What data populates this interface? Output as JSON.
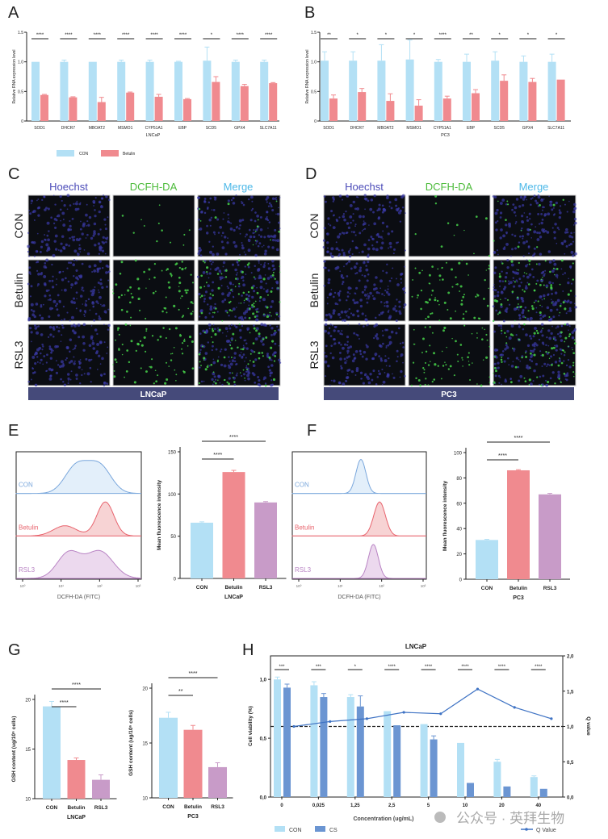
{
  "colors": {
    "con": "#b3e0f5",
    "betulin": "#f08a8f",
    "rsl3": "#c89bc8",
    "cs": "#6b95d2",
    "q": "#3f73c4",
    "band": "#454a7a",
    "hoechst": "#4b4bb8",
    "dcfh": "#4cbb3a",
    "merge": "#4cb8e8"
  },
  "panel_letters": [
    "A",
    "B",
    "C",
    "D",
    "E",
    "F",
    "G",
    "H"
  ],
  "legend_ab": [
    "CON",
    "Betulin"
  ],
  "microscopy": {
    "columns": [
      "Hoechst",
      "DCFH-DA",
      "Merge"
    ],
    "rows": [
      "CON",
      "Betulin",
      "RSL3"
    ],
    "C_cell_line": "LNCaP",
    "D_cell_line": "PC3"
  },
  "chart_data": [
    {
      "id": "A",
      "type": "bar",
      "title": "",
      "xlabel": "LNCaP",
      "ylabel": "Relative RNA expression level",
      "ylim": [
        0,
        1.5
      ],
      "yticks": [
        "0",
        "0.5",
        "1.0",
        "1.5"
      ],
      "categories": [
        "SOD1",
        "DHCR7",
        "MBOAT2",
        "MSMO1",
        "CYP51A1",
        "EBP",
        "SCD5",
        "GPX4",
        "SLC7A11"
      ],
      "series": [
        {
          "name": "CON",
          "values": [
            1,
            1,
            1,
            1,
            1,
            1,
            1.02,
            1,
            1
          ],
          "errors": [
            0,
            0.03,
            0,
            0.03,
            0.03,
            0.01,
            0.23,
            0.03,
            0.03
          ]
        },
        {
          "name": "Betulin",
          "values": [
            0.44,
            0.4,
            0.32,
            0.48,
            0.41,
            0.37,
            0.66,
            0.59,
            0.64
          ],
          "errors": [
            0.01,
            0.01,
            0.08,
            0.01,
            0.04,
            0.01,
            0.09,
            0.03,
            0.01
          ]
        }
      ],
      "significance": [
        "****",
        "****",
        "****",
        "****",
        "****",
        "****",
        "*",
        "****",
        "****"
      ]
    },
    {
      "id": "B",
      "type": "bar",
      "title": "",
      "xlabel": "PC3",
      "ylabel": "Relative RNA expression level",
      "ylim": [
        0,
        1.5
      ],
      "yticks": [
        "0",
        "0.5",
        "1.0",
        "1.5"
      ],
      "categories": [
        "SOD1",
        "DHCR7",
        "MBOAT2",
        "MSMO1",
        "CYP51A1",
        "EBP",
        "SCD5",
        "GPX4",
        "SLC7A11"
      ],
      "series": [
        {
          "name": "CON",
          "values": [
            1.02,
            1.02,
            1.02,
            1.04,
            1,
            1,
            1.02,
            1,
            1
          ],
          "errors": [
            0.15,
            0.15,
            0.27,
            0.33,
            0.04,
            0.13,
            0.15,
            0.1,
            0.13
          ]
        },
        {
          "name": "Betulin",
          "values": [
            0.38,
            0.49,
            0.34,
            0.26,
            0.38,
            0.47,
            0.68,
            0.66,
            0.7
          ],
          "errors": [
            0.06,
            0.06,
            0.12,
            0.1,
            0.04,
            0.06,
            0.1,
            0.06,
            0
          ]
        }
      ],
      "significance": [
        "**",
        "*",
        "*",
        "*",
        "****",
        "**",
        "*",
        "*",
        "*"
      ]
    },
    {
      "id": "E_hist",
      "type": "area",
      "xlabel": "DCFH-DA (FITC)",
      "xticks": [
        "10⁰",
        "10¹",
        "10²",
        "10³"
      ],
      "xlim_log10": [
        0,
        3
      ],
      "series": [
        {
          "name": "CON",
          "components": [
            [
              1.4,
              0.3,
              0.8
            ],
            [
              2.0,
              0.3,
              0.8
            ]
          ]
        },
        {
          "name": "Betulin",
          "components": [
            [
              1.1,
              0.3,
              0.3
            ],
            [
              2.15,
              0.22,
              1.0
            ]
          ]
        },
        {
          "name": "RSL3",
          "components": [
            [
              1.2,
              0.3,
              0.75
            ],
            [
              2.0,
              0.35,
              0.8
            ]
          ]
        }
      ]
    },
    {
      "id": "E_bar",
      "type": "bar",
      "xlabel": "LNCaP",
      "ylabel": "Mean fluorescence intensity",
      "ylim": [
        0,
        150
      ],
      "yticks": [
        "0",
        "50",
        "100",
        "150"
      ],
      "categories": [
        "CON",
        "Betulin",
        "RSL3"
      ],
      "values": [
        66,
        126,
        90
      ],
      "errors": [
        1,
        2,
        1
      ],
      "comparisons": [
        {
          "pair": [
            "CON",
            "Betulin"
          ],
          "label": "****"
        },
        {
          "pair": [
            "CON",
            "RSL3"
          ],
          "label": "****"
        }
      ]
    },
    {
      "id": "F_hist",
      "type": "area",
      "xlabel": "DCFH-DA (FITC)",
      "xticks": [
        "10⁰",
        "10¹",
        "10²",
        "10³"
      ],
      "xlim_log10": [
        0,
        3
      ],
      "series": [
        {
          "name": "CON",
          "components": [
            [
              1.5,
              0.12,
              1
            ]
          ]
        },
        {
          "name": "Betulin",
          "components": [
            [
              1.95,
              0.14,
              1
            ]
          ]
        },
        {
          "name": "RSL3",
          "components": [
            [
              1.8,
              0.12,
              1
            ]
          ]
        }
      ]
    },
    {
      "id": "F_bar",
      "type": "bar",
      "xlabel": "PC3",
      "ylabel": "Mean fluorescence intensity",
      "ylim": [
        0,
        100
      ],
      "yticks": [
        "0",
        "20",
        "40",
        "60",
        "80",
        "100"
      ],
      "categories": [
        "CON",
        "Betulin",
        "RSL3"
      ],
      "values": [
        31,
        86,
        67
      ],
      "errors": [
        0.5,
        0.5,
        0.8
      ],
      "comparisons": [
        {
          "pair": [
            "CON",
            "Betulin"
          ],
          "label": "****"
        },
        {
          "pair": [
            "CON",
            "RSL3"
          ],
          "label": "****"
        }
      ]
    },
    {
      "id": "G_lncap",
      "type": "bar",
      "xlabel": "LNCaP",
      "ylabel": "GSH content (ug/10⁶ cells)",
      "ylim": [
        10,
        20
      ],
      "yticks": [
        "10",
        "15",
        "20"
      ],
      "categories": [
        "CON",
        "Betulin",
        "RSL3"
      ],
      "values": [
        19.3,
        13.9,
        11.9
      ],
      "errors": [
        0.5,
        0.2,
        0.5
      ],
      "comparisons": [
        {
          "pair": [
            "CON",
            "Betulin"
          ],
          "label": "****"
        },
        {
          "pair": [
            "CON",
            "RSL3"
          ],
          "label": "****"
        }
      ]
    },
    {
      "id": "G_pc3",
      "type": "bar",
      "xlabel": "PC3",
      "ylabel": "GSH content (ug/10⁶ cells)",
      "ylim": [
        10,
        20
      ],
      "yticks": [
        "10",
        "15",
        "20"
      ],
      "categories": [
        "CON",
        "Betulin",
        "RSL3"
      ],
      "values": [
        17.3,
        16.2,
        12.8
      ],
      "errors": [
        0.5,
        0.4,
        0.4
      ],
      "comparisons": [
        {
          "pair": [
            "CON",
            "Betulin"
          ],
          "label": "**"
        },
        {
          "pair": [
            "CON",
            "RSL3"
          ],
          "label": "****"
        }
      ]
    },
    {
      "id": "H",
      "type": "bar",
      "title": "LNCaP",
      "xlabel": "Concentration (ug/mL)",
      "ylabel": "Cell viability (%)",
      "y2label": "Q value",
      "ylim": [
        0,
        1.2
      ],
      "yticks": [
        "0,0",
        "0,5",
        "1,0"
      ],
      "y2lim": [
        0,
        2
      ],
      "y2ticks": [
        "0,0",
        "0,5",
        "1,0",
        "1,5",
        "2,0"
      ],
      "categories": [
        "0",
        "0,025",
        "1,25",
        "2,5",
        "5",
        "10",
        "20",
        "40"
      ],
      "series": [
        {
          "name": "CON",
          "values": [
            1.0,
            0.95,
            0.85,
            0.73,
            0.62,
            0.46,
            0.3,
            0.17
          ],
          "errors": [
            0.02,
            0.03,
            0.02,
            0,
            0,
            0,
            0.02,
            0.01
          ]
        },
        {
          "name": "CS",
          "values": [
            0.93,
            0.85,
            0.77,
            0.61,
            0.49,
            0.12,
            0.09,
            0.07
          ],
          "errors": [
            0.03,
            0.03,
            0.09,
            0,
            0.03,
            0,
            0,
            0
          ]
        },
        {
          "name": "Q Value",
          "axis": "right",
          "values": [
            1.0,
            1.07,
            1.11,
            1.2,
            1.18,
            1.53,
            1.27,
            1.11
          ]
        }
      ],
      "reference_line": {
        "axis": "right",
        "value": 1.0
      },
      "significance": [
        "***",
        "***",
        "*",
        "****",
        "****",
        "****",
        "****",
        "****"
      ]
    }
  ],
  "watermark": "公众号 · 英拜生物"
}
